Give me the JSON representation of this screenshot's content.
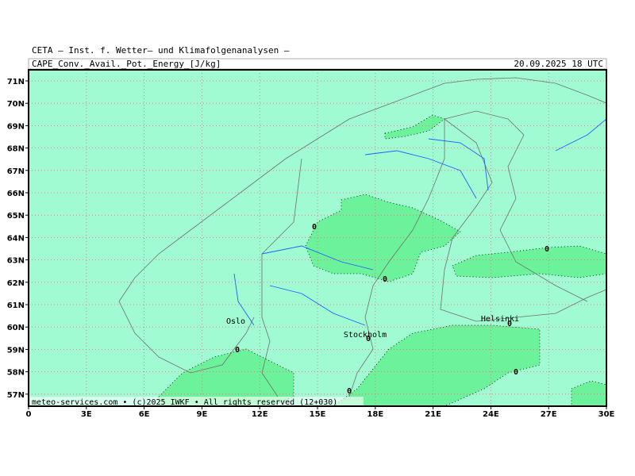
{
  "header": {
    "title": "CETA — Inst. f. Wetter— und Klimafolgenanalysen —",
    "subtitle": "CAPE_Conv._Avail._Pot._Energy_[J/kg]",
    "date": "20.09.2025 18 UTC"
  },
  "map": {
    "lat_labels": [
      "71N",
      "70N",
      "69N",
      "68N",
      "67N",
      "66N",
      "65N",
      "64N",
      "63N",
      "62N",
      "61N",
      "60N",
      "59N",
      "58N",
      "57N"
    ],
    "lon_labels": [
      "0",
      "3E",
      "6E",
      "9E",
      "12E",
      "15E",
      "18E",
      "21E",
      "24E",
      "27E",
      "30E"
    ],
    "cities": [
      "Oslo",
      "Stockholm",
      "Helsinki"
    ],
    "contour_labels": [
      "0",
      "0",
      "0",
      "0",
      "0",
      "0",
      "0",
      "0"
    ]
  },
  "footer": "meteo-services.com • (c)2025 IWKF • All rights reserved (12+030)"
}
